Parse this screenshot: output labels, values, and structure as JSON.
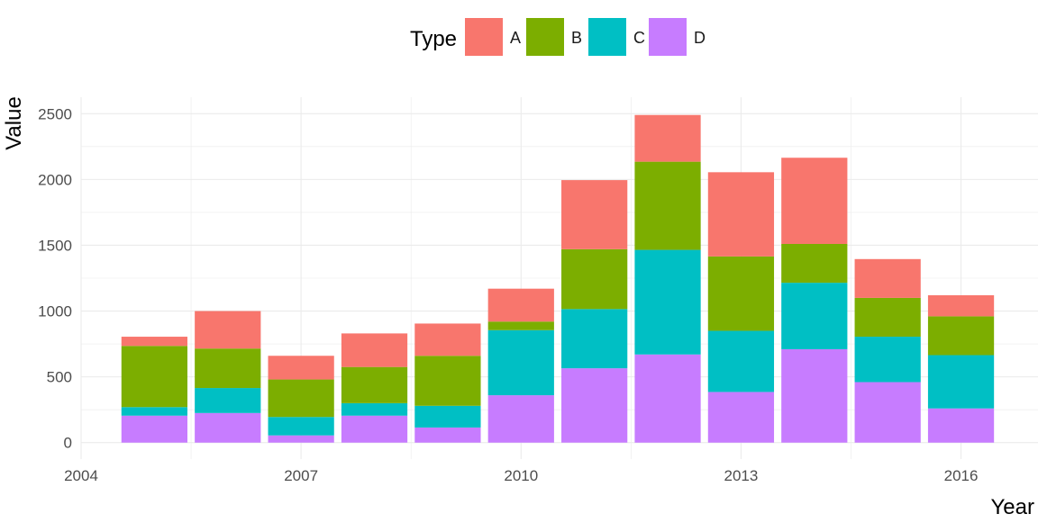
{
  "chart_data": {
    "type": "bar",
    "stacked": true,
    "x": [
      2005,
      2006,
      2007,
      2008,
      2009,
      2010,
      2011,
      2012,
      2013,
      2014,
      2015,
      2016
    ],
    "series": [
      {
        "name": "D",
        "color": "#c77cff",
        "values": [
          205,
          225,
          55,
          205,
          115,
          360,
          565,
          670,
          385,
          710,
          460,
          260
        ]
      },
      {
        "name": "C",
        "color": "#00bfc4",
        "values": [
          65,
          190,
          140,
          95,
          165,
          495,
          450,
          795,
          465,
          505,
          345,
          405
        ]
      },
      {
        "name": "B",
        "color": "#7cae00",
        "values": [
          465,
          300,
          285,
          275,
          380,
          65,
          455,
          670,
          565,
          295,
          295,
          295
        ]
      },
      {
        "name": "A",
        "color": "#f8766d",
        "values": [
          70,
          285,
          180,
          255,
          245,
          250,
          525,
          355,
          640,
          655,
          295,
          160
        ]
      }
    ],
    "xlabel": "Year",
    "ylabel": "Value",
    "xlim": [
      2004,
      2017.05
    ],
    "ylim": [
      -125,
      2625
    ],
    "x_ticks": [
      "2004",
      "2007",
      "2010",
      "2013",
      "2016"
    ],
    "y_ticks": [
      "0",
      "500",
      "1000",
      "1500",
      "2000",
      "2500"
    ],
    "grid": true,
    "legend": {
      "title": "Type",
      "position": "top",
      "order": [
        "A",
        "B",
        "C",
        "D"
      ]
    },
    "colors": {
      "A": "#f8766d",
      "B": "#7cae00",
      "C": "#00bfc4",
      "D": "#c77cff",
      "grid": "#ebebeb"
    }
  }
}
